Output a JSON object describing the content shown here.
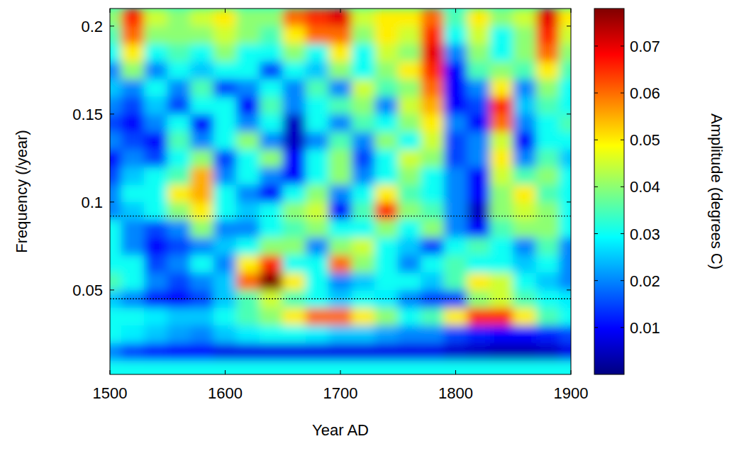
{
  "chart_data": {
    "type": "heatmap",
    "x_label": "Year AD",
    "y_label": "Frequency (/year)",
    "x": [
      1500,
      1520,
      1540,
      1560,
      1580,
      1600,
      1620,
      1640,
      1660,
      1680,
      1700,
      1720,
      1740,
      1760,
      1780,
      1800,
      1820,
      1840,
      1860,
      1880,
      1900
    ],
    "y": [
      0.005,
      0.015,
      0.025,
      0.035,
      0.045,
      0.055,
      0.065,
      0.075,
      0.085,
      0.095,
      0.105,
      0.115,
      0.125,
      0.135,
      0.145,
      0.155,
      0.165,
      0.175,
      0.185,
      0.195,
      0.205
    ],
    "values": [
      [
        0.03,
        0.03,
        0.03,
        0.03,
        0.03,
        0.03,
        0.03,
        0.03,
        0.03,
        0.03,
        0.03,
        0.03,
        0.03,
        0.03,
        0.03,
        0.03,
        0.03,
        0.03,
        0.03,
        0.03,
        0.03
      ],
      [
        0.02,
        0.015,
        0.012,
        0.01,
        0.01,
        0.008,
        0.008,
        0.008,
        0.008,
        0.008,
        0.008,
        0.008,
        0.008,
        0.008,
        0.008,
        0.006,
        0.005,
        0.004,
        0.004,
        0.005,
        0.008
      ],
      [
        0.03,
        0.028,
        0.025,
        0.022,
        0.02,
        0.025,
        0.028,
        0.03,
        0.03,
        0.028,
        0.025,
        0.025,
        0.022,
        0.02,
        0.02,
        0.015,
        0.012,
        0.01,
        0.01,
        0.012,
        0.015
      ],
      [
        0.03,
        0.03,
        0.028,
        0.025,
        0.025,
        0.03,
        0.035,
        0.04,
        0.05,
        0.06,
        0.06,
        0.05,
        0.04,
        0.03,
        0.035,
        0.05,
        0.065,
        0.065,
        0.05,
        0.035,
        0.03
      ],
      [
        0.025,
        0.02,
        0.012,
        0.01,
        0.015,
        0.025,
        0.035,
        0.045,
        0.035,
        0.03,
        0.025,
        0.03,
        0.028,
        0.02,
        0.015,
        0.015,
        0.04,
        0.045,
        0.035,
        0.03,
        0.028
      ],
      [
        0.035,
        0.03,
        0.02,
        0.015,
        0.02,
        0.025,
        0.06,
        0.078,
        0.05,
        0.03,
        0.02,
        0.025,
        0.03,
        0.03,
        0.025,
        0.035,
        0.05,
        0.045,
        0.03,
        0.025,
        0.02
      ],
      [
        0.03,
        0.03,
        0.015,
        0.02,
        0.03,
        0.02,
        0.05,
        0.065,
        0.03,
        0.03,
        0.06,
        0.04,
        0.03,
        0.02,
        0.03,
        0.035,
        0.03,
        0.03,
        0.025,
        0.03,
        0.02
      ],
      [
        0.03,
        0.02,
        0.01,
        0.015,
        0.02,
        0.025,
        0.03,
        0.04,
        0.04,
        0.02,
        0.04,
        0.045,
        0.03,
        0.025,
        0.015,
        0.03,
        0.035,
        0.03,
        0.02,
        0.035,
        0.02
      ],
      [
        0.03,
        0.02,
        0.015,
        0.02,
        0.04,
        0.02,
        0.02,
        0.03,
        0.035,
        0.04,
        0.03,
        0.03,
        0.04,
        0.03,
        0.04,
        0.02,
        0.01,
        0.035,
        0.04,
        0.04,
        0.03
      ],
      [
        0.02,
        0.025,
        0.03,
        0.04,
        0.05,
        0.03,
        0.025,
        0.03,
        0.04,
        0.045,
        0.01,
        0.035,
        0.065,
        0.04,
        0.035,
        0.02,
        0.005,
        0.04,
        0.045,
        0.04,
        0.03
      ],
      [
        0.02,
        0.03,
        0.03,
        0.05,
        0.055,
        0.03,
        0.02,
        0.01,
        0.03,
        0.04,
        0.02,
        0.03,
        0.05,
        0.035,
        0.03,
        0.02,
        0.01,
        0.04,
        0.05,
        0.035,
        0.03
      ],
      [
        0.015,
        0.025,
        0.03,
        0.035,
        0.055,
        0.02,
        0.03,
        0.02,
        0.01,
        0.03,
        0.04,
        0.02,
        0.03,
        0.04,
        0.03,
        0.02,
        0.01,
        0.045,
        0.035,
        0.04,
        0.03
      ],
      [
        0.01,
        0.02,
        0.015,
        0.03,
        0.04,
        0.015,
        0.03,
        0.04,
        0.01,
        0.03,
        0.04,
        0.015,
        0.03,
        0.045,
        0.04,
        0.015,
        0.02,
        0.05,
        0.02,
        0.035,
        0.025
      ],
      [
        0.02,
        0.015,
        0.01,
        0.035,
        0.02,
        0.03,
        0.04,
        0.02,
        0.005,
        0.02,
        0.035,
        0.02,
        0.04,
        0.03,
        0.045,
        0.015,
        0.02,
        0.045,
        0.01,
        0.03,
        0.03
      ],
      [
        0.015,
        0.01,
        0.02,
        0.03,
        0.01,
        0.03,
        0.02,
        0.03,
        0.005,
        0.03,
        0.02,
        0.035,
        0.03,
        0.04,
        0.05,
        0.02,
        0.01,
        0.06,
        0.02,
        0.03,
        0.035
      ],
      [
        0.02,
        0.015,
        0.025,
        0.015,
        0.03,
        0.03,
        0.01,
        0.035,
        0.02,
        0.03,
        0.035,
        0.04,
        0.02,
        0.045,
        0.055,
        0.01,
        0.015,
        0.065,
        0.025,
        0.035,
        0.03
      ],
      [
        0.025,
        0.02,
        0.03,
        0.02,
        0.035,
        0.015,
        0.02,
        0.03,
        0.02,
        0.035,
        0.02,
        0.045,
        0.035,
        0.04,
        0.06,
        0.01,
        0.02,
        0.05,
        0.02,
        0.04,
        0.03
      ],
      [
        0.02,
        0.04,
        0.02,
        0.03,
        0.025,
        0.03,
        0.03,
        0.015,
        0.03,
        0.025,
        0.04,
        0.03,
        0.04,
        0.05,
        0.065,
        0.01,
        0.035,
        0.04,
        0.035,
        0.05,
        0.035
      ],
      [
        0.03,
        0.05,
        0.03,
        0.035,
        0.03,
        0.04,
        0.03,
        0.03,
        0.04,
        0.03,
        0.05,
        0.03,
        0.045,
        0.04,
        0.07,
        0.02,
        0.04,
        0.03,
        0.04,
        0.06,
        0.04
      ],
      [
        0.035,
        0.06,
        0.04,
        0.04,
        0.04,
        0.045,
        0.04,
        0.035,
        0.05,
        0.06,
        0.06,
        0.04,
        0.05,
        0.045,
        0.065,
        0.03,
        0.045,
        0.03,
        0.04,
        0.065,
        0.045
      ],
      [
        0.04,
        0.065,
        0.045,
        0.04,
        0.045,
        0.05,
        0.04,
        0.04,
        0.06,
        0.065,
        0.07,
        0.045,
        0.05,
        0.05,
        0.06,
        0.035,
        0.05,
        0.04,
        0.045,
        0.07,
        0.05
      ]
    ],
    "xlim": [
      1500,
      1900
    ],
    "xticks": [
      1500,
      1600,
      1700,
      1800,
      1900
    ],
    "ylim": [
      0.002,
      0.21
    ],
    "yticks": [
      0.05,
      0.1,
      0.15,
      0.2
    ],
    "hlines": [
      0.092,
      0.045
    ],
    "colorbar": {
      "label": "Amplitude (degrees C)",
      "lim": [
        0,
        0.078
      ],
      "ticks": [
        0.01,
        0.02,
        0.03,
        0.04,
        0.05,
        0.06,
        0.07
      ]
    }
  }
}
